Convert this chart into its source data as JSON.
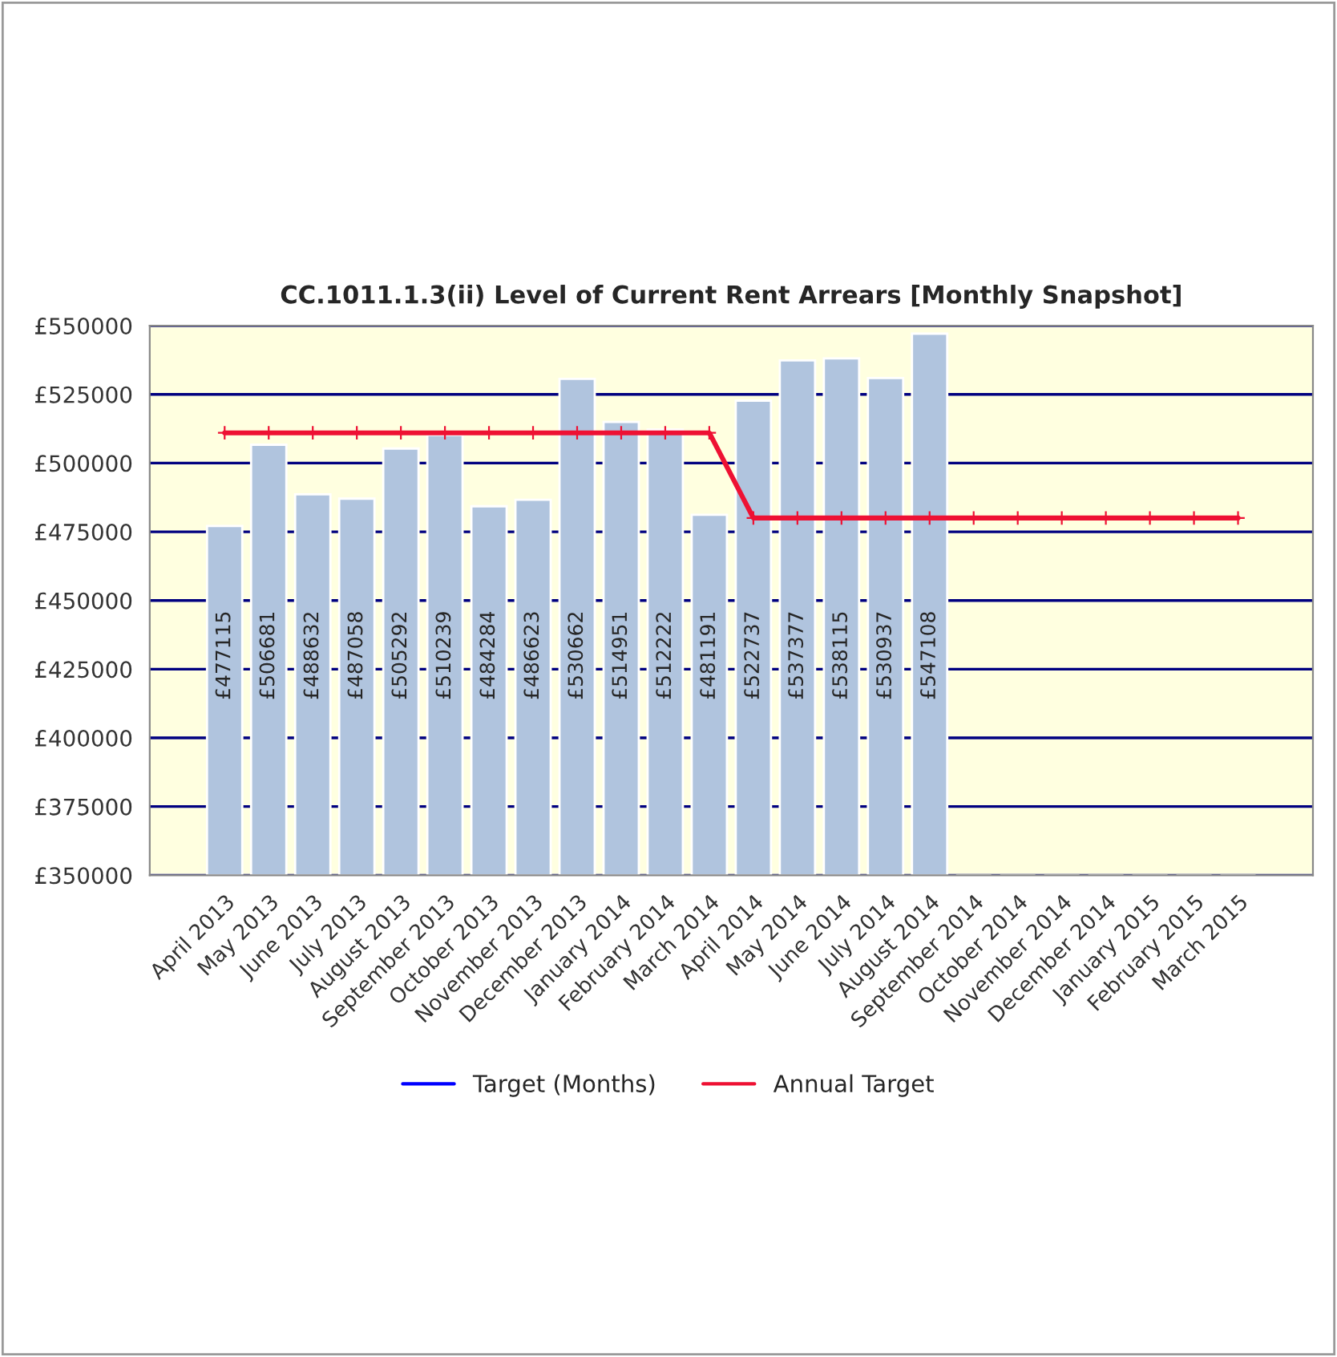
{
  "chart_data": {
    "type": "bar",
    "title": "CC.1011.1.3(ii) Level of Current Rent Arrears [Monthly Snapshot]",
    "categories": [
      "April 2013",
      "May 2013",
      "June 2013",
      "July 2013",
      "August 2013",
      "September 2013",
      "October 2013",
      "November 2013",
      "December 2013",
      "January 2014",
      "February 2014",
      "March 2014",
      "April 2014",
      "May 2014",
      "June 2014",
      "July 2014",
      "August 2014",
      "September 2014",
      "October 2014",
      "November 2014",
      "December 2014",
      "January 2015",
      "February 2015",
      "March 2015"
    ],
    "series": [
      {
        "color": "#b0c4de",
        "values": [
          477115,
          506681,
          488632,
          487058,
          505292,
          510239,
          484284,
          486623,
          530662,
          514951,
          512222,
          481191,
          522737,
          537377,
          538115,
          530937,
          547108,
          null,
          null,
          null,
          null,
          null,
          null,
          null
        ],
        "value_labels": [
          "£477115",
          "£506681",
          "£488632",
          "£487058",
          "£505292",
          "£510239",
          "£484284",
          "£486623",
          "£530662",
          "£514951",
          "£512222",
          "£481191",
          "£522737",
          "£537377",
          "£538115",
          "£530937",
          "£547108",
          null,
          null,
          null,
          null,
          null,
          null,
          null
        ]
      },
      {
        "type": "line",
        "name": "Target (Months)",
        "color": "#0000ff",
        "values": [
          null,
          null,
          null,
          null,
          null,
          null,
          null,
          null,
          null,
          null,
          null,
          null,
          null,
          null,
          null,
          null,
          null,
          null,
          null,
          null,
          null,
          null,
          null,
          null
        ]
      },
      {
        "type": "line",
        "name": "Annual Target",
        "color": "#ee1133",
        "marker": "cross",
        "values": [
          511000,
          511000,
          511000,
          511000,
          511000,
          511000,
          511000,
          511000,
          511000,
          511000,
          511000,
          511000,
          480000,
          480000,
          480000,
          480000,
          480000,
          480000,
          480000,
          480000,
          480000,
          480000,
          480000,
          480000
        ]
      }
    ],
    "ylim": [
      350000,
      550000
    ],
    "yticks": [
      {
        "value": 350000,
        "label": "£350000"
      },
      {
        "value": 375000,
        "label": "£375000"
      },
      {
        "value": 400000,
        "label": "£400000"
      },
      {
        "value": 425000,
        "label": "£425000"
      },
      {
        "value": 450000,
        "label": "£450000"
      },
      {
        "value": 475000,
        "label": "£475000"
      },
      {
        "value": 500000,
        "label": "£500000"
      },
      {
        "value": 525000,
        "label": "£525000"
      },
      {
        "value": 550000,
        "label": "£550000"
      }
    ],
    "grid": "y",
    "legend": "bottom"
  }
}
